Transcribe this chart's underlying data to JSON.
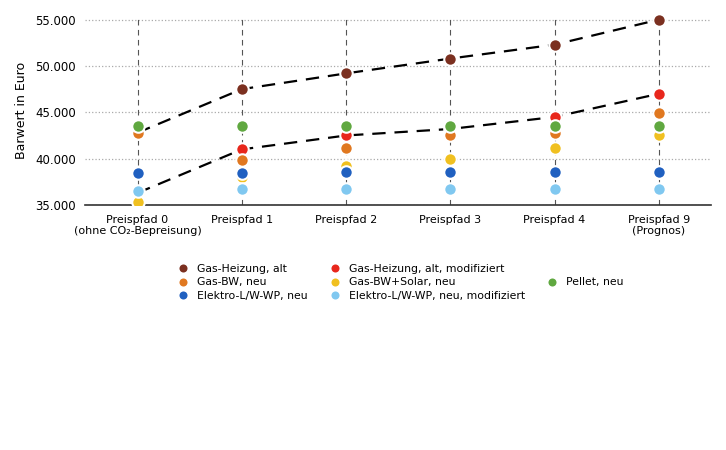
{
  "x_positions": [
    0,
    1,
    2,
    3,
    4,
    5
  ],
  "x_labels": [
    "Preispfad 0\n(ohne CO₂-Bepreisung)",
    "Preispfad 1",
    "Preispfad 2",
    "Preispfad 3",
    "Preispfad 4",
    "Preispfad 9\n(Prognos)"
  ],
  "series": {
    "Gas-Heizung, alt": {
      "values": [
        42800,
        47500,
        49200,
        50800,
        52300,
        55000
      ],
      "color": "#7B3020",
      "dashed": true
    },
    "Gas-Heizung, alt, modifiziert": {
      "values": [
        36300,
        41000,
        42500,
        43200,
        44500,
        47000
      ],
      "color": "#e8271c",
      "dashed": true
    },
    "Gas-BW, neu": {
      "values": [
        42800,
        39900,
        41200,
        42500,
        42800,
        44900
      ],
      "color": "#e07820",
      "dashed": false
    },
    "Gas-BW+Solar, neu": {
      "values": [
        35300,
        38000,
        39200,
        40000,
        41100,
        42500
      ],
      "color": "#f0c020",
      "dashed": false
    },
    "Elektro-L/W-WP, neu": {
      "values": [
        38500,
        38500,
        38600,
        38600,
        38600,
        38600
      ],
      "color": "#2060c0",
      "dashed": false
    },
    "Elektro-L/W-WP, neu, modifiziert": {
      "values": [
        36500,
        36700,
        36700,
        36700,
        36700,
        36700
      ],
      "color": "#80c8f0",
      "dashed": false
    },
    "Pellet, neu": {
      "values": [
        43500,
        43500,
        43500,
        43500,
        43500,
        43500
      ],
      "color": "#60a840",
      "dashed": false
    }
  },
  "markersize": 9,
  "ylabel": "Barwert in Euro",
  "ylim": [
    35000,
    55500
  ],
  "yticks": [
    35000,
    40000,
    45000,
    50000,
    55000
  ],
  "ytick_labels": [
    "35.000",
    "40.000",
    "45.000",
    "50.000",
    "55.000"
  ],
  "background_color": "#ffffff",
  "figsize": [
    7.26,
    4.5
  ],
  "dpi": 100,
  "legend_col1": [
    "Gas-Heizung, alt",
    "Gas-Heizung, alt, modifiziert"
  ],
  "legend_col2": [
    "Gas-BW, neu",
    "Gas-BW+Solar, neu",
    "Pellet, neu"
  ],
  "legend_col3": [
    "Elektro-L/W-WP, neu",
    "Elektro-L/W-WP, neu, modifiziert"
  ]
}
